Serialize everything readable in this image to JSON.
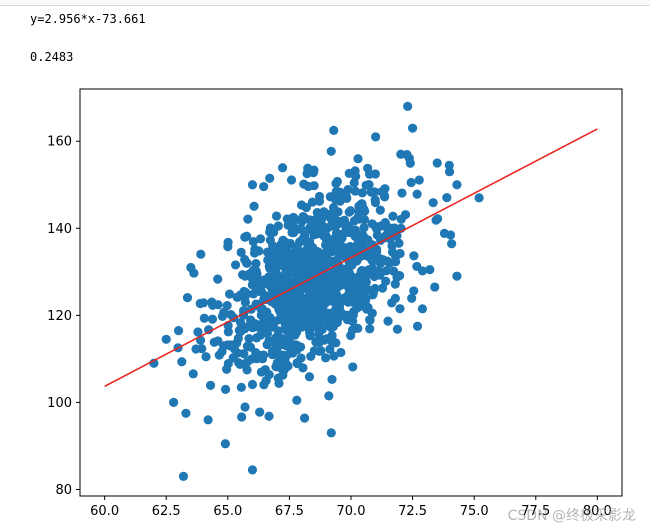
{
  "output": {
    "equation": "y=2.956*x-73.661",
    "score": "0.2483"
  },
  "watermark": "CSDN @终极采影龙",
  "colors": {
    "points": "#1f77b4",
    "fit_line": "#e8251f",
    "axes": "#000000"
  },
  "chart_data": {
    "type": "scatter",
    "title": "",
    "xlabel": "",
    "ylabel": "",
    "xlim": [
      59.0,
      81.0
    ],
    "ylim": [
      78.5,
      172.0
    ],
    "xticks": [
      60.0,
      62.5,
      65.0,
      67.5,
      70.0,
      72.5,
      75.0,
      77.5,
      80.0
    ],
    "xtick_labels": [
      "60.0",
      "62.5",
      "65.0",
      "67.5",
      "70.0",
      "72.5",
      "75.0",
      "77.5",
      "80.0"
    ],
    "yticks": [
      80,
      100,
      120,
      140,
      160
    ],
    "ytick_labels": [
      "80",
      "100",
      "120",
      "140",
      "160"
    ],
    "grid": false,
    "point_count_approx": 1000,
    "scatter_distribution": {
      "x_mean": 68.5,
      "x_sd": 1.9,
      "y_mean": 128.8,
      "y_sd": 11.0,
      "correlation": 0.5
    },
    "outliers": [
      [
        63.2,
        83.0
      ],
      [
        66.0,
        84.5
      ],
      [
        69.2,
        93.0
      ],
      [
        64.9,
        90.5
      ],
      [
        72.3,
        168.0
      ],
      [
        72.5,
        163.0
      ],
      [
        69.3,
        162.5
      ],
      [
        75.2,
        147.0
      ],
      [
        74.3,
        150.0
      ],
      [
        74.3,
        129.0
      ],
      [
        73.2,
        130.5
      ],
      [
        62.8,
        100.0
      ],
      [
        62.0,
        109.0
      ],
      [
        62.5,
        114.5
      ],
      [
        63.0,
        116.5
      ],
      [
        63.5,
        131.0
      ],
      [
        73.5,
        155.0
      ],
      [
        71.0,
        161.0
      ],
      [
        66.0,
        150.0
      ],
      [
        66.7,
        151.5
      ],
      [
        74.0,
        153.0
      ],
      [
        72.7,
        117.5
      ],
      [
        72.9,
        121.5
      ],
      [
        73.4,
        126.5
      ],
      [
        63.3,
        97.5
      ],
      [
        64.2,
        96.0
      ],
      [
        67.8,
        100.5
      ],
      [
        69.1,
        101.5
      ]
    ],
    "fit_line": {
      "name": "y=2.956*x-73.661",
      "slope": 2.956,
      "intercept": -73.661,
      "x_range": [
        60.0,
        80.0
      ]
    }
  }
}
